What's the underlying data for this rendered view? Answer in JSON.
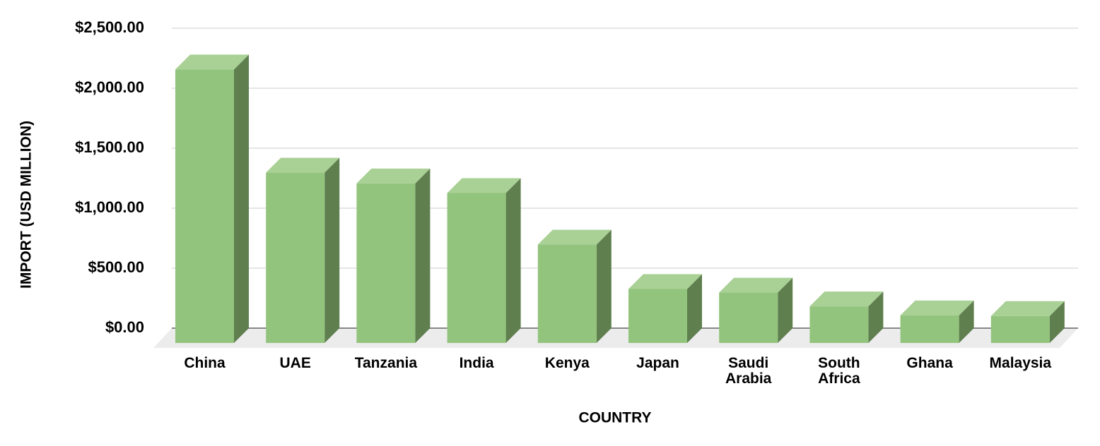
{
  "chart_data": {
    "type": "bar3d",
    "x_label": "COUNTRY",
    "y_label": "IMPORT (USD MILLION)",
    "categories": [
      "China",
      "UAE",
      "Tanzania",
      "India",
      "Kenya",
      "Japan",
      "Saudi Arabia",
      "South Africa",
      "Ghana",
      "Malaysia"
    ],
    "values": [
      2280,
      1420,
      1330,
      1250,
      820,
      450,
      420,
      305,
      230,
      225
    ],
    "color": "#93c47d",
    "ylim": [
      0,
      2500
    ],
    "yticks": [
      {
        "value": 0,
        "label": "$0.00"
      },
      {
        "value": 500,
        "label": "$500.00"
      },
      {
        "value": 1000,
        "label": "$1,000.00"
      },
      {
        "value": 1500,
        "label": "$1,500.00"
      },
      {
        "value": 2000,
        "label": "$2,000.00"
      },
      {
        "value": 2500,
        "label": "$2,500.00"
      }
    ],
    "grid": true
  }
}
